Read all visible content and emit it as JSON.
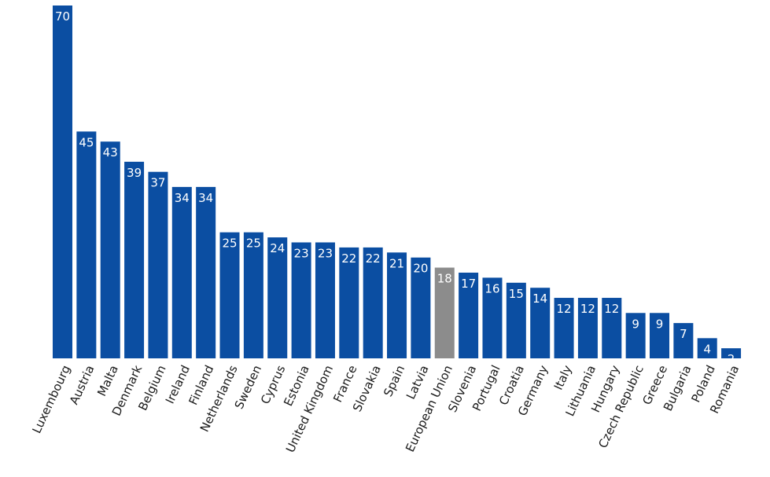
{
  "chart_data": {
    "type": "bar",
    "title": "",
    "xlabel": "",
    "ylabel": "",
    "categories": [
      "Luxembourg",
      "Austria",
      "Malta",
      "Denmark",
      "Belgium",
      "Ireland",
      "Finland",
      "Netherlands",
      "Sweden",
      "Cyprus",
      "Estonia",
      "United Kingdom",
      "France",
      "Slovakia",
      "Spain",
      "Latvia",
      "European Union",
      "Slovenia",
      "Portugal",
      "Croatia",
      "Germany",
      "Italy",
      "Lithuania",
      "Hungary",
      "Czech Republic",
      "Greece",
      "Bulgaria",
      "Poland",
      "Romania"
    ],
    "values": [
      70,
      45,
      43,
      39,
      37,
      34,
      34,
      25,
      25,
      24,
      23,
      23,
      22,
      22,
      21,
      20,
      18,
      17,
      16,
      15,
      14,
      12,
      12,
      12,
      9,
      9,
      7,
      4,
      2
    ],
    "highlight_category": "European Union",
    "ylim": [
      0,
      70
    ],
    "grid": false,
    "legend": "none",
    "data_labels": "inside-top",
    "colors": {
      "bar": "#0b4ea2",
      "highlight": "#8c8c8c",
      "value_text": "#ffffff",
      "category_text": "#1a1a1a"
    }
  }
}
